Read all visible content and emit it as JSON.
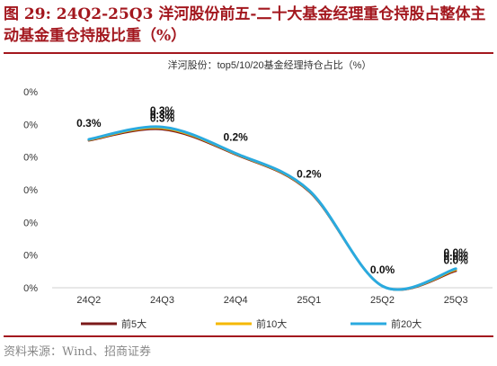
{
  "figure": {
    "title": "图 29: 24Q2-25Q3 洋河股份前五-二十大基金经理重仓持股占整体主动基金重仓持股比重（%）",
    "source": "资料来源：Wind、招商证券"
  },
  "chart_data": {
    "type": "line",
    "title": "洋河股份：top5/10/20基金经理持仓占比（%）",
    "categories": [
      "24Q2",
      "24Q3",
      "24Q4",
      "25Q1",
      "25Q2",
      "25Q3"
    ],
    "y_tick_labels": [
      "0%",
      "0%",
      "0%",
      "0%",
      "0%",
      "0%",
      "0%"
    ],
    "ylim": [
      0,
      0.35
    ],
    "series": [
      {
        "name": "前5大",
        "color": "#7b1a1a",
        "values": [
          0.263,
          0.283,
          0.238,
          0.172,
          0.003,
          0.03
        ],
        "labels": [
          "",
          "0.3%",
          "",
          "",
          "",
          "0.0%"
        ]
      },
      {
        "name": "前10大",
        "color": "#f5b800",
        "values": [
          0.264,
          0.285,
          0.239,
          0.173,
          0.003,
          0.032
        ],
        "labels": [
          "",
          "0.3%",
          "",
          "",
          "",
          "0.0%"
        ]
      },
      {
        "name": "前20大",
        "color": "#2aaadf",
        "values": [
          0.265,
          0.287,
          0.24,
          0.174,
          0.003,
          0.034
        ],
        "labels": [
          "0.3%",
          "0.3%",
          "0.2%",
          "0.2%",
          "0.0%",
          "0.0%"
        ]
      }
    ],
    "legend_position": "bottom",
    "grid": false
  }
}
